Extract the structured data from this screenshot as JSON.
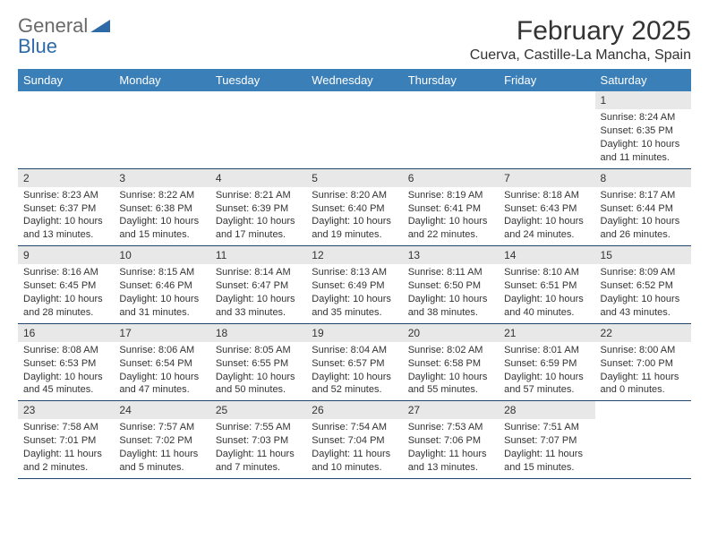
{
  "branding": {
    "logo_word1": "General",
    "logo_word2": "Blue",
    "logo_fill": "#2f6aa8",
    "logo_text_gray": "#6a6a6a"
  },
  "title": {
    "month_year": "February 2025",
    "location": "Cuerva, Castille-La Mancha, Spain"
  },
  "styling": {
    "header_bg": "#3b7fb8",
    "header_text": "#ffffff",
    "daynum_bg": "#e8e8e8",
    "row_border": "#22456b",
    "body_text": "#333333",
    "page_bg": "#ffffff",
    "weekday_fontsize": 13,
    "title_fontsize": 30,
    "location_fontsize": 16,
    "body_fontsize": 11
  },
  "weekdays": [
    "Sunday",
    "Monday",
    "Tuesday",
    "Wednesday",
    "Thursday",
    "Friday",
    "Saturday"
  ],
  "weeks": [
    [
      {
        "blank": true
      },
      {
        "blank": true
      },
      {
        "blank": true
      },
      {
        "blank": true
      },
      {
        "blank": true
      },
      {
        "blank": true
      },
      {
        "day": "1",
        "sunrise": "Sunrise: 8:24 AM",
        "sunset": "Sunset: 6:35 PM",
        "daylight": "Daylight: 10 hours and 11 minutes."
      }
    ],
    [
      {
        "day": "2",
        "sunrise": "Sunrise: 8:23 AM",
        "sunset": "Sunset: 6:37 PM",
        "daylight": "Daylight: 10 hours and 13 minutes."
      },
      {
        "day": "3",
        "sunrise": "Sunrise: 8:22 AM",
        "sunset": "Sunset: 6:38 PM",
        "daylight": "Daylight: 10 hours and 15 minutes."
      },
      {
        "day": "4",
        "sunrise": "Sunrise: 8:21 AM",
        "sunset": "Sunset: 6:39 PM",
        "daylight": "Daylight: 10 hours and 17 minutes."
      },
      {
        "day": "5",
        "sunrise": "Sunrise: 8:20 AM",
        "sunset": "Sunset: 6:40 PM",
        "daylight": "Daylight: 10 hours and 19 minutes."
      },
      {
        "day": "6",
        "sunrise": "Sunrise: 8:19 AM",
        "sunset": "Sunset: 6:41 PM",
        "daylight": "Daylight: 10 hours and 22 minutes."
      },
      {
        "day": "7",
        "sunrise": "Sunrise: 8:18 AM",
        "sunset": "Sunset: 6:43 PM",
        "daylight": "Daylight: 10 hours and 24 minutes."
      },
      {
        "day": "8",
        "sunrise": "Sunrise: 8:17 AM",
        "sunset": "Sunset: 6:44 PM",
        "daylight": "Daylight: 10 hours and 26 minutes."
      }
    ],
    [
      {
        "day": "9",
        "sunrise": "Sunrise: 8:16 AM",
        "sunset": "Sunset: 6:45 PM",
        "daylight": "Daylight: 10 hours and 28 minutes."
      },
      {
        "day": "10",
        "sunrise": "Sunrise: 8:15 AM",
        "sunset": "Sunset: 6:46 PM",
        "daylight": "Daylight: 10 hours and 31 minutes."
      },
      {
        "day": "11",
        "sunrise": "Sunrise: 8:14 AM",
        "sunset": "Sunset: 6:47 PM",
        "daylight": "Daylight: 10 hours and 33 minutes."
      },
      {
        "day": "12",
        "sunrise": "Sunrise: 8:13 AM",
        "sunset": "Sunset: 6:49 PM",
        "daylight": "Daylight: 10 hours and 35 minutes."
      },
      {
        "day": "13",
        "sunrise": "Sunrise: 8:11 AM",
        "sunset": "Sunset: 6:50 PM",
        "daylight": "Daylight: 10 hours and 38 minutes."
      },
      {
        "day": "14",
        "sunrise": "Sunrise: 8:10 AM",
        "sunset": "Sunset: 6:51 PM",
        "daylight": "Daylight: 10 hours and 40 minutes."
      },
      {
        "day": "15",
        "sunrise": "Sunrise: 8:09 AM",
        "sunset": "Sunset: 6:52 PM",
        "daylight": "Daylight: 10 hours and 43 minutes."
      }
    ],
    [
      {
        "day": "16",
        "sunrise": "Sunrise: 8:08 AM",
        "sunset": "Sunset: 6:53 PM",
        "daylight": "Daylight: 10 hours and 45 minutes."
      },
      {
        "day": "17",
        "sunrise": "Sunrise: 8:06 AM",
        "sunset": "Sunset: 6:54 PM",
        "daylight": "Daylight: 10 hours and 47 minutes."
      },
      {
        "day": "18",
        "sunrise": "Sunrise: 8:05 AM",
        "sunset": "Sunset: 6:55 PM",
        "daylight": "Daylight: 10 hours and 50 minutes."
      },
      {
        "day": "19",
        "sunrise": "Sunrise: 8:04 AM",
        "sunset": "Sunset: 6:57 PM",
        "daylight": "Daylight: 10 hours and 52 minutes."
      },
      {
        "day": "20",
        "sunrise": "Sunrise: 8:02 AM",
        "sunset": "Sunset: 6:58 PM",
        "daylight": "Daylight: 10 hours and 55 minutes."
      },
      {
        "day": "21",
        "sunrise": "Sunrise: 8:01 AM",
        "sunset": "Sunset: 6:59 PM",
        "daylight": "Daylight: 10 hours and 57 minutes."
      },
      {
        "day": "22",
        "sunrise": "Sunrise: 8:00 AM",
        "sunset": "Sunset: 7:00 PM",
        "daylight": "Daylight: 11 hours and 0 minutes."
      }
    ],
    [
      {
        "day": "23",
        "sunrise": "Sunrise: 7:58 AM",
        "sunset": "Sunset: 7:01 PM",
        "daylight": "Daylight: 11 hours and 2 minutes."
      },
      {
        "day": "24",
        "sunrise": "Sunrise: 7:57 AM",
        "sunset": "Sunset: 7:02 PM",
        "daylight": "Daylight: 11 hours and 5 minutes."
      },
      {
        "day": "25",
        "sunrise": "Sunrise: 7:55 AM",
        "sunset": "Sunset: 7:03 PM",
        "daylight": "Daylight: 11 hours and 7 minutes."
      },
      {
        "day": "26",
        "sunrise": "Sunrise: 7:54 AM",
        "sunset": "Sunset: 7:04 PM",
        "daylight": "Daylight: 11 hours and 10 minutes."
      },
      {
        "day": "27",
        "sunrise": "Sunrise: 7:53 AM",
        "sunset": "Sunset: 7:06 PM",
        "daylight": "Daylight: 11 hours and 13 minutes."
      },
      {
        "day": "28",
        "sunrise": "Sunrise: 7:51 AM",
        "sunset": "Sunset: 7:07 PM",
        "daylight": "Daylight: 11 hours and 15 minutes."
      },
      {
        "blank": true
      }
    ]
  ]
}
